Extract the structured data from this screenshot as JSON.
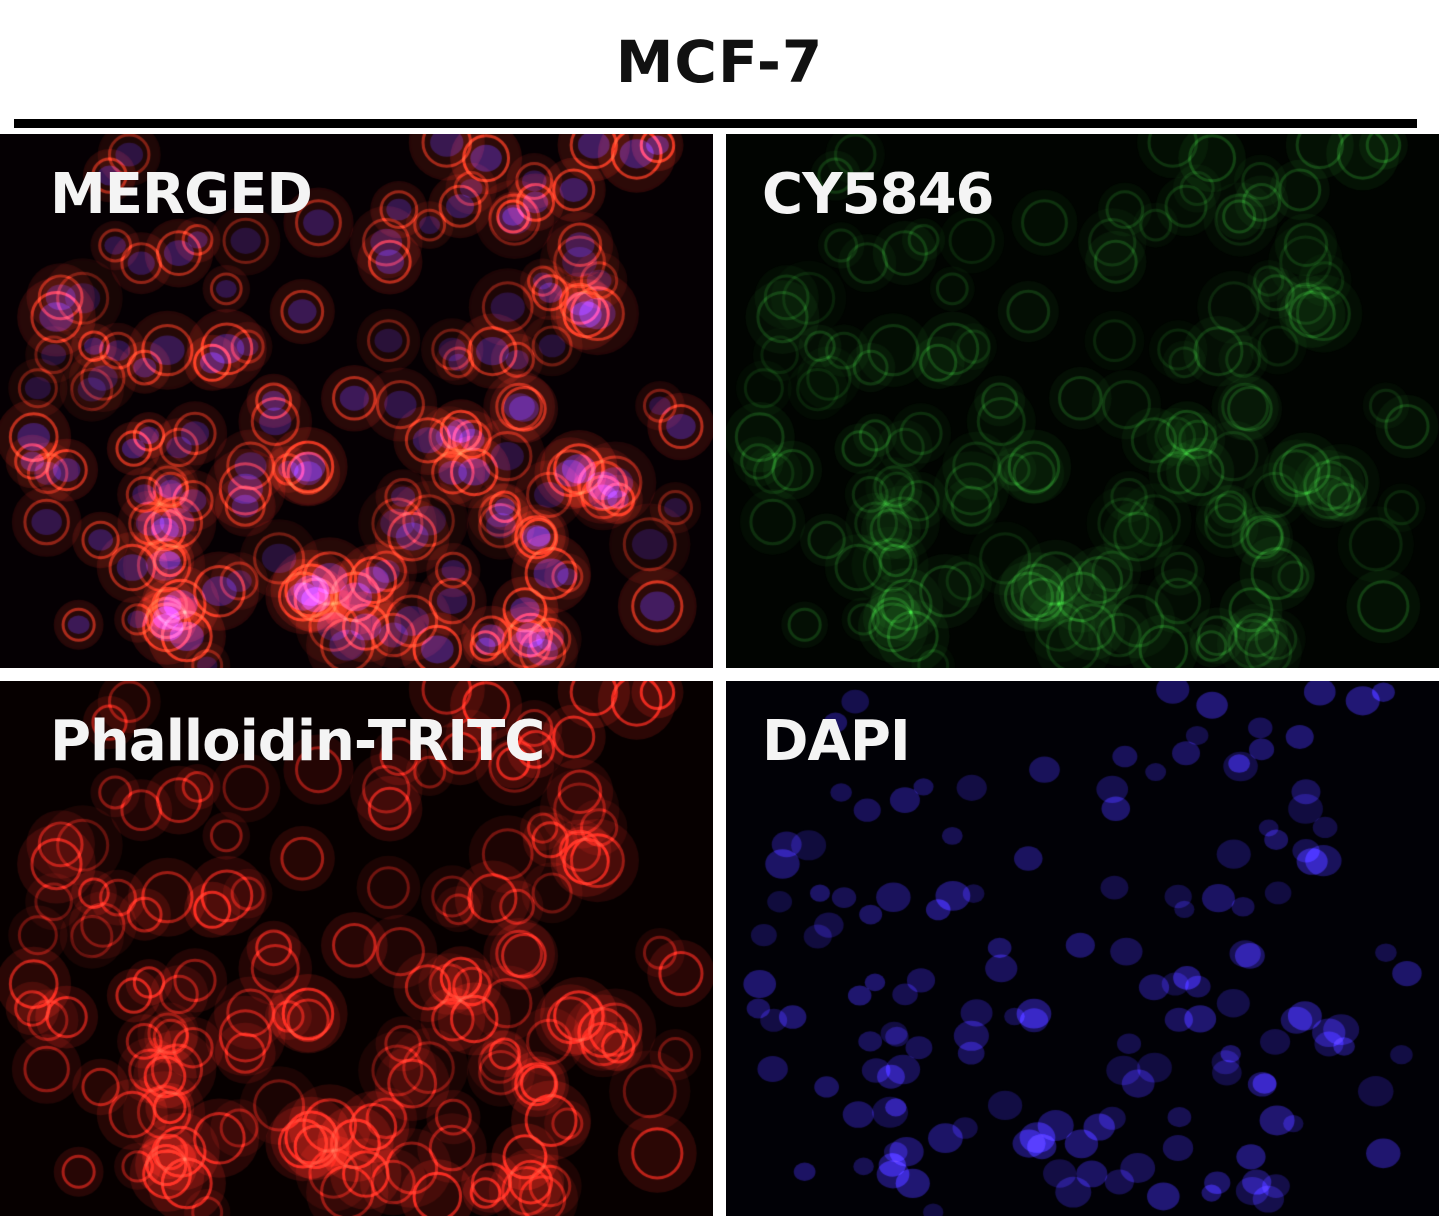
{
  "figure": {
    "title": "MCF-7",
    "panels": [
      {
        "label": "MERGED",
        "channel": "merged",
        "colors": [
          "#e0281e",
          "#3c2ad0",
          "#2a8a2a"
        ]
      },
      {
        "label": "CY5846",
        "channel": "green",
        "colors": [
          "#2a9a2a"
        ]
      },
      {
        "label": "Phalloidin-TRITC",
        "channel": "red",
        "colors": [
          "#e0281e"
        ]
      },
      {
        "label": "DAPI",
        "channel": "blue",
        "colors": [
          "#3c2ad0"
        ]
      }
    ]
  }
}
